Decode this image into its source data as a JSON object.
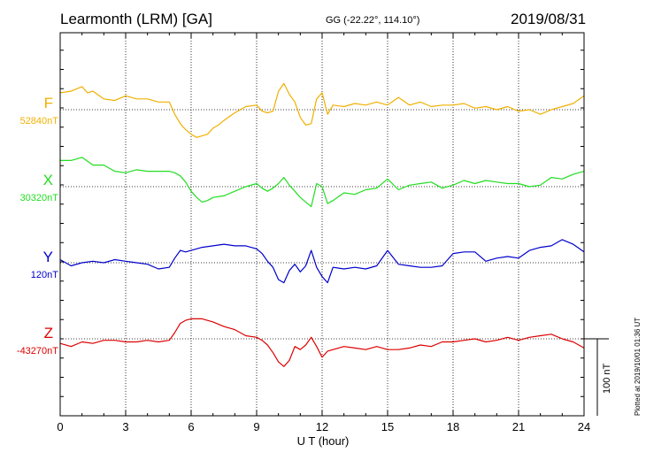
{
  "header": {
    "station": "Learmonth (LRM)  [GA]",
    "coords": "GG (-22.22°, 114.10°)",
    "date": "2019/08/31"
  },
  "footer": {
    "plotted": "Plotted at 2019/10/01 01:36 UT",
    "scale_label": "100 nT"
  },
  "colors": {
    "F": "#f0b000",
    "X": "#22dd22",
    "Y": "#0000cc",
    "Z": "#dd0000"
  },
  "chart_data": {
    "type": "line",
    "xlabel": "U T (hour)",
    "xlim": [
      0,
      24
    ],
    "xticks": [
      "0",
      "3",
      "6",
      "9",
      "12",
      "15",
      "18",
      "21",
      "24"
    ],
    "grid": true,
    "series": [
      {
        "name": "F",
        "baseline_label": "52840nT",
        "baseline_nT": 52840,
        "x": [
          0,
          0.5,
          1,
          1.25,
          1.5,
          2,
          2.5,
          3,
          3.5,
          4,
          4.5,
          5,
          5.25,
          5.5,
          5.75,
          6,
          6.25,
          6.5,
          6.75,
          7,
          7.25,
          7.5,
          8,
          8.5,
          9,
          9.25,
          9.5,
          9.75,
          10,
          10.25,
          10.5,
          10.75,
          11,
          11.25,
          11.5,
          11.75,
          12,
          12.25,
          12.5,
          13,
          13.5,
          14,
          14.5,
          15,
          15.5,
          16,
          16.5,
          17,
          17.5,
          18,
          18.5,
          19,
          19.5,
          20,
          20.5,
          21,
          21.5,
          22,
          22.5,
          23,
          23.5,
          24
        ],
        "y": [
          22,
          24,
          30,
          22,
          24,
          14,
          12,
          18,
          14,
          14,
          10,
          10,
          -6,
          -18,
          -26,
          -32,
          -36,
          -34,
          -32,
          -24,
          -20,
          -14,
          -4,
          4,
          6,
          -2,
          -4,
          -2,
          24,
          34,
          20,
          10,
          -10,
          -20,
          -18,
          14,
          22,
          -6,
          6,
          4,
          8,
          6,
          10,
          6,
          16,
          6,
          10,
          4,
          6,
          6,
          8,
          2,
          4,
          0,
          4,
          -2,
          0,
          -6,
          0,
          4,
          8,
          18
        ]
      },
      {
        "name": "X",
        "baseline_label": "30320nT",
        "baseline_nT": 30320,
        "x": [
          0,
          0.5,
          1,
          1.5,
          2,
          2.5,
          3,
          3.5,
          4,
          4.5,
          5,
          5.25,
          5.5,
          5.75,
          6,
          6.25,
          6.5,
          6.75,
          7,
          7.5,
          8,
          8.5,
          9,
          9.25,
          9.5,
          9.75,
          10,
          10.25,
          10.5,
          10.75,
          11,
          11.25,
          11.5,
          11.75,
          12,
          12.25,
          12.5,
          13,
          13.5,
          14,
          14.5,
          15,
          15.5,
          16,
          16.5,
          17,
          17.5,
          18,
          18.5,
          19,
          19.5,
          20,
          20.5,
          21,
          21.5,
          22,
          22.5,
          23,
          23.5,
          24
        ],
        "y": [
          34,
          34,
          38,
          28,
          28,
          20,
          18,
          22,
          20,
          20,
          20,
          18,
          14,
          6,
          -6,
          -14,
          -20,
          -18,
          -14,
          -12,
          -6,
          0,
          4,
          -2,
          -6,
          -2,
          4,
          12,
          2,
          -6,
          -14,
          -20,
          -26,
          4,
          0,
          -22,
          -18,
          -8,
          -10,
          -4,
          -2,
          10,
          -4,
          2,
          4,
          6,
          -2,
          2,
          8,
          4,
          8,
          6,
          4,
          4,
          0,
          2,
          12,
          10,
          16,
          20
        ]
      },
      {
        "name": "Y",
        "baseline_label": "120nT",
        "baseline_nT": 120,
        "x": [
          0,
          0.5,
          1,
          1.5,
          2,
          2.5,
          3,
          3.5,
          4,
          4.5,
          5,
          5.25,
          5.5,
          5.75,
          6,
          6.5,
          7,
          7.5,
          8,
          8.5,
          9,
          9.25,
          9.5,
          9.75,
          10,
          10.25,
          10.5,
          10.75,
          11,
          11.25,
          11.5,
          11.75,
          12,
          12.25,
          12.5,
          13,
          13.5,
          14,
          14.5,
          15,
          15.5,
          16,
          16.5,
          17,
          17.5,
          18,
          18.5,
          19,
          19.5,
          20,
          20.5,
          21,
          21.5,
          22,
          22.5,
          23,
          23.5,
          24
        ],
        "y": [
          4,
          -4,
          0,
          2,
          0,
          4,
          2,
          0,
          -2,
          -8,
          -6,
          6,
          16,
          14,
          16,
          20,
          22,
          24,
          22,
          22,
          18,
          12,
          2,
          -6,
          -22,
          -26,
          -10,
          -2,
          -12,
          -4,
          16,
          -6,
          -18,
          -26,
          -6,
          -8,
          -6,
          -8,
          -4,
          16,
          -2,
          -4,
          -6,
          -6,
          -4,
          12,
          14,
          14,
          2,
          6,
          8,
          6,
          16,
          20,
          22,
          30,
          24,
          14
        ]
      },
      {
        "name": "Z",
        "baseline_label": "-43270nT",
        "baseline_nT": -43270,
        "x": [
          0,
          0.5,
          1,
          1.5,
          2,
          2.5,
          3,
          3.5,
          4,
          4.5,
          5,
          5.25,
          5.5,
          5.75,
          6,
          6.5,
          7,
          7.5,
          8,
          8.5,
          9,
          9.25,
          9.5,
          9.75,
          10,
          10.25,
          10.5,
          10.75,
          11,
          11.25,
          11.5,
          11.75,
          12,
          12.25,
          12.5,
          13,
          13.5,
          14,
          14.5,
          15,
          15.5,
          16,
          16.5,
          17,
          17.5,
          18,
          18.5,
          19,
          19.5,
          20,
          20.5,
          21,
          21.5,
          22,
          22.5,
          23,
          23.5,
          24
        ],
        "y": [
          -6,
          -10,
          -4,
          -6,
          -2,
          -2,
          -4,
          -4,
          -2,
          -4,
          -2,
          8,
          20,
          24,
          26,
          26,
          22,
          16,
          12,
          4,
          2,
          -2,
          -8,
          -18,
          -30,
          -36,
          -28,
          -10,
          -14,
          -8,
          2,
          -10,
          -24,
          -16,
          -14,
          -10,
          -12,
          -14,
          -10,
          -14,
          -14,
          -12,
          -8,
          -10,
          -4,
          -4,
          -2,
          0,
          -4,
          -2,
          2,
          -2,
          2,
          4,
          6,
          0,
          -4,
          -12
        ]
      }
    ],
    "scale_bar_nT": 100
  }
}
